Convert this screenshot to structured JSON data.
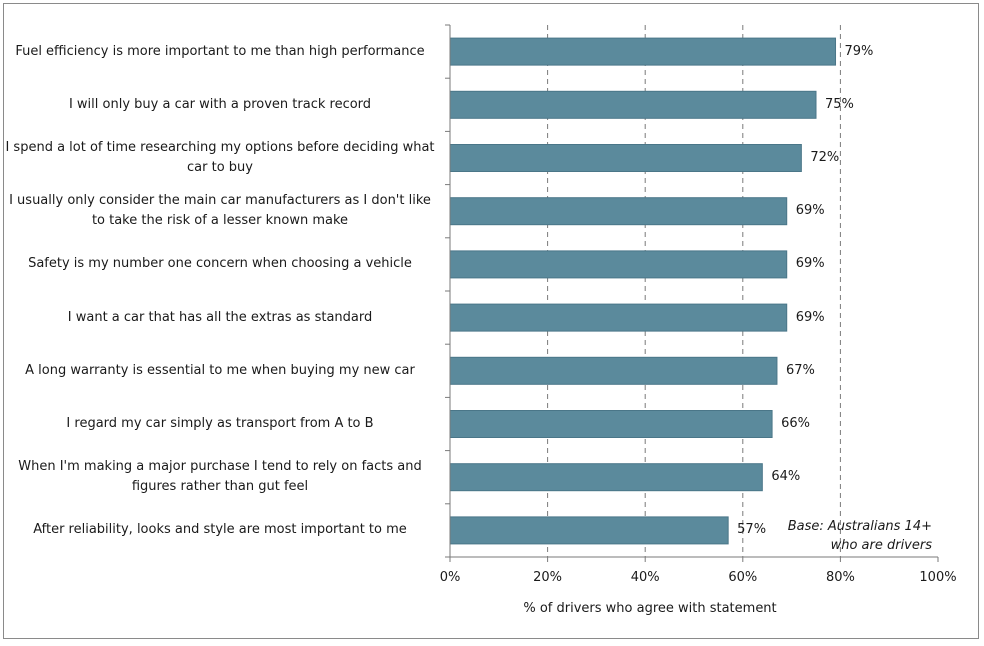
{
  "chart_data": {
    "type": "bar",
    "orientation": "horizontal",
    "categories": [
      "Fuel efficiency is more important to me than high performance",
      "I will only buy a car with a proven track record",
      "I spend a lot of time researching my options before deciding what car to buy",
      "I usually only consider the main car manufacturers as I don't like to take the risk of a lesser known make",
      "Safety is my number one concern when choosing a vehicle",
      "I want a car that has all the extras as standard",
      "A long warranty is essential to me when buying my new car",
      "I regard my car simply as transport from A to B",
      "When I'm making a major purchase I tend to rely on facts and figures rather than gut feel",
      "After reliability, looks and style are most important to me"
    ],
    "category_lines": [
      [
        "Fuel efficiency is more important to me than high performance"
      ],
      [
        "I will only buy a car with a proven track record"
      ],
      [
        "I spend a lot of time researching my options before deciding what",
        "car to buy"
      ],
      [
        "I usually only consider the main car manufacturers as I don't like",
        "to take the risk of a lesser known make"
      ],
      [
        "Safety is my number one concern when choosing a vehicle"
      ],
      [
        "I want a car that has all the extras as standard"
      ],
      [
        "A long warranty is essential to me when buying my new car"
      ],
      [
        "I regard my car simply as transport from A to B"
      ],
      [
        "When I'm making a major purchase I tend to rely on facts and",
        "figures rather than gut feel"
      ],
      [
        "After reliability, looks and style are most important to me"
      ]
    ],
    "values": [
      79,
      75,
      72,
      69,
      69,
      69,
      67,
      66,
      64,
      57
    ],
    "value_labels": [
      "79%",
      "75%",
      "72%",
      "69%",
      "69%",
      "69%",
      "67%",
      "66%",
      "64%",
      "57%"
    ],
    "xlim": [
      0,
      100
    ],
    "xticks": [
      0,
      20,
      40,
      60,
      80,
      100
    ],
    "xtick_labels": [
      "0%",
      "20%",
      "40%",
      "60%",
      "80%",
      "100%"
    ],
    "xlabel": "% of drivers who agree with statement",
    "ylabel": "",
    "title": "",
    "grid": "vertical dashed",
    "annotation_lines": [
      "Base: Australians 14+",
      "who are drivers"
    ],
    "colors": {
      "bar": "#5b8a9c",
      "bar_edge": "#4a7688",
      "grid": "#7a7a7a",
      "axis": "#7a7a7a",
      "frame": "#8a8a8a"
    }
  }
}
